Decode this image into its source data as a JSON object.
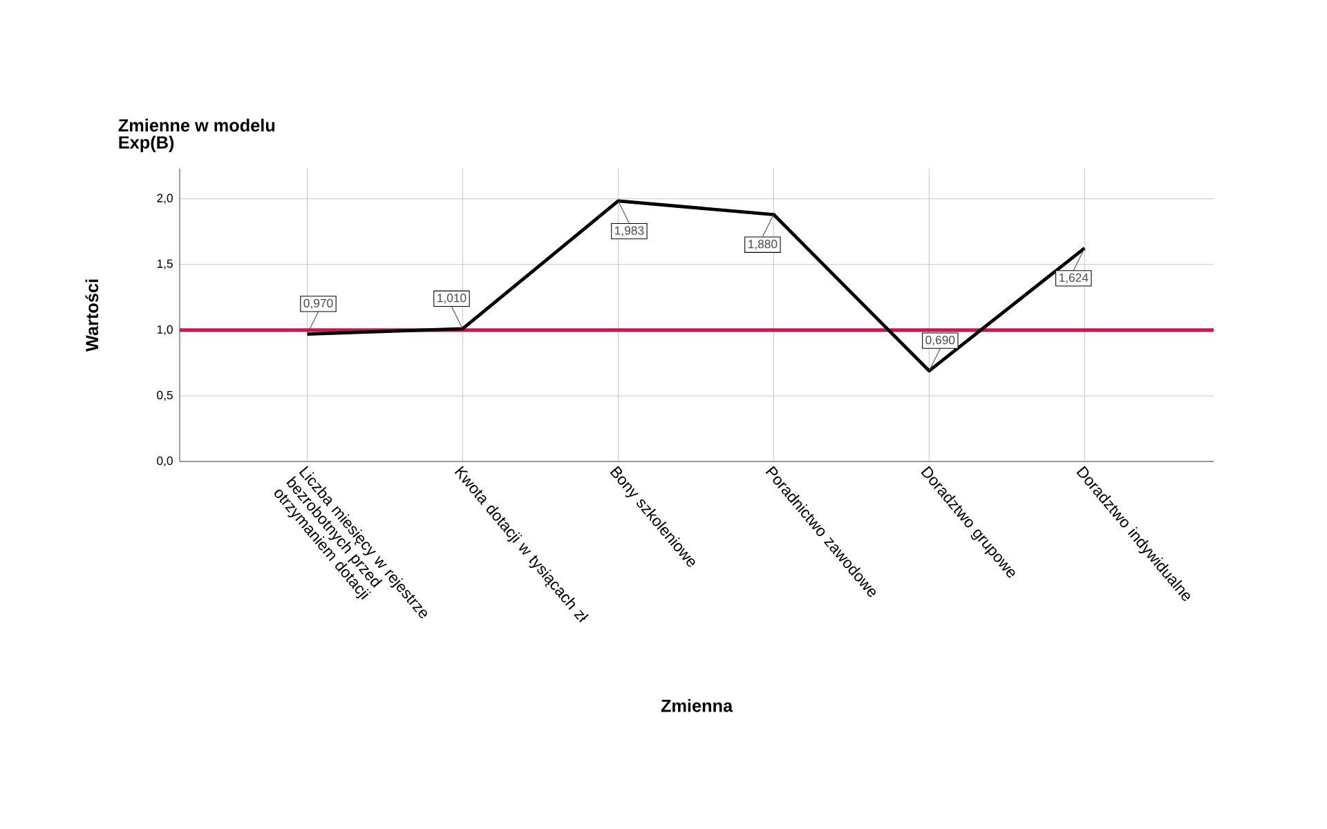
{
  "chart_data": {
    "type": "line",
    "title": "Zmienne w modelu",
    "subtitle": "Exp(B)",
    "xlabel": "Zmienna",
    "ylabel": "Wartości",
    "categories": [
      "Liczba miesięcy w rejestrze bezrobotnych przed otrzymaniem dotacji",
      "Kwota dotacji w tysiącach zł",
      "Bony szkoleniowe",
      "Poradnictwo zawodowe",
      "Doradztwo grupowe",
      "Doradztwo indywidualne"
    ],
    "values": [
      0.97,
      1.01,
      1.983,
      1.88,
      0.69,
      1.624
    ],
    "value_labels": [
      "0,970",
      "1,010",
      "1,983",
      "1,880",
      "0,690",
      "1,624"
    ],
    "color": "#000000",
    "ylim": [
      0,
      2.23
    ],
    "yticks": [
      {
        "value": 0,
        "label": "0,0"
      },
      {
        "value": 0.5,
        "label": "0,5"
      },
      {
        "value": 1,
        "label": "1,0"
      },
      {
        "value": 1.5,
        "label": "1,5"
      },
      {
        "value": 2,
        "label": "2,0"
      }
    ],
    "ref_lines": [
      {
        "axis": "y",
        "value": 1,
        "color": "#cc1450"
      }
    ],
    "grid": true
  }
}
